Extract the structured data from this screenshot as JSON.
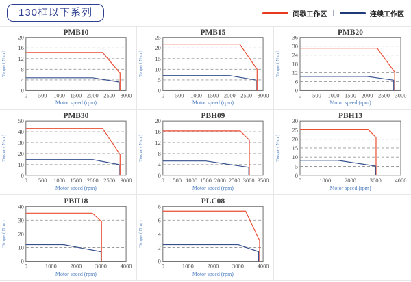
{
  "header": {
    "title": "130框以下系列",
    "legend": {
      "separator": "|",
      "items": [
        {
          "label": "间歇工作区",
          "color": "#e8391d"
        },
        {
          "label": "连续工作区",
          "color": "#1e3a78"
        }
      ]
    }
  },
  "chart_style": {
    "grid_color": "#9a9a9a",
    "frame_color": "#6e6e6e",
    "tick_color": "#4f4f4f",
    "title_color": "#3c3c3c",
    "axis_label_color": "#4f7fc0"
  },
  "chart_data": [
    {
      "type": "line",
      "title": "PMB10",
      "xlabel": "Motor speed (rpm)",
      "ylabel": "Torque ( N·m )",
      "xlim": [
        0,
        3000
      ],
      "ylim": [
        0,
        20
      ],
      "xticks": [
        0,
        500,
        1000,
        1500,
        2000,
        2500,
        3000
      ],
      "yticks": [
        0,
        4,
        8,
        12,
        16,
        20
      ],
      "grid": true,
      "legend_position": "none",
      "series": [
        {
          "name": "间歇工作区",
          "color": "#ea4f35",
          "points": [
            [
              0,
              14.3
            ],
            [
              2300,
              14.3
            ],
            [
              2820,
              6.5
            ],
            [
              2820,
              0
            ]
          ]
        },
        {
          "name": "连续工作区",
          "color": "#35508d",
          "points": [
            [
              0,
              4.8
            ],
            [
              2000,
              4.8
            ],
            [
              2790,
              3.2
            ],
            [
              2790,
              0
            ]
          ]
        }
      ]
    },
    {
      "type": "line",
      "title": "PMB15",
      "xlabel": "Motor speed (rpm)",
      "ylabel": "Torque ( N·m )",
      "xlim": [
        0,
        3000
      ],
      "ylim": [
        0,
        25
      ],
      "xticks": [
        0,
        500,
        1000,
        1500,
        2000,
        2500,
        3000
      ],
      "yticks": [
        0,
        5,
        10,
        15,
        20,
        25
      ],
      "grid": true,
      "legend_position": "none",
      "series": [
        {
          "name": "间歇工作区",
          "color": "#ea4f35",
          "points": [
            [
              0,
              21.8
            ],
            [
              2300,
              21.8
            ],
            [
              2820,
              10
            ],
            [
              2820,
              0
            ]
          ]
        },
        {
          "name": "连续工作区",
          "color": "#35508d",
          "points": [
            [
              0,
              7
            ],
            [
              2000,
              7
            ],
            [
              2790,
              4.9
            ],
            [
              2790,
              0
            ]
          ]
        }
      ]
    },
    {
      "type": "line",
      "title": "PMB20",
      "xlabel": "Motor speed (rpm)",
      "ylabel": "Torque ( N·m )",
      "xlim": [
        0,
        3000
      ],
      "ylim": [
        0,
        36
      ],
      "xticks": [
        0,
        500,
        1000,
        1500,
        2000,
        2500,
        3000
      ],
      "yticks": [
        0,
        6,
        12,
        18,
        24,
        30,
        36
      ],
      "grid": true,
      "legend_position": "none",
      "series": [
        {
          "name": "间歇工作区",
          "color": "#ea4f35",
          "points": [
            [
              0,
              28.6
            ],
            [
              2300,
              28.6
            ],
            [
              2820,
              12.5
            ],
            [
              2820,
              0
            ]
          ]
        },
        {
          "name": "连续工作区",
          "color": "#35508d",
          "points": [
            [
              0,
              9.5
            ],
            [
              2000,
              9.5
            ],
            [
              2790,
              7
            ],
            [
              2790,
              0
            ]
          ]
        }
      ]
    },
    {
      "type": "line",
      "title": "PMB30",
      "xlabel": "Motor speed (rpm)",
      "ylabel": "Torque ( N·m )",
      "xlim": [
        0,
        3000
      ],
      "ylim": [
        0,
        50
      ],
      "xticks": [
        0,
        500,
        1000,
        1500,
        2000,
        2500,
        3000
      ],
      "yticks": [
        0,
        10,
        20,
        30,
        40,
        50
      ],
      "grid": true,
      "legend_position": "none",
      "series": [
        {
          "name": "间歇工作区",
          "color": "#ea4f35",
          "points": [
            [
              0,
              43
            ],
            [
              2300,
              43
            ],
            [
              2820,
              19
            ],
            [
              2820,
              0
            ]
          ]
        },
        {
          "name": "连续工作区",
          "color": "#35508d",
          "points": [
            [
              0,
              14.5
            ],
            [
              2000,
              14.5
            ],
            [
              2790,
              10
            ],
            [
              2790,
              0
            ]
          ]
        }
      ]
    },
    {
      "type": "line",
      "title": "PBH09",
      "xlabel": "Motor speed (rpm)",
      "ylabel": "Torque ( N·m )",
      "xlim": [
        0,
        3500
      ],
      "ylim": [
        0,
        20
      ],
      "xticks": [
        0,
        500,
        1000,
        1500,
        2000,
        2500,
        3000,
        3500
      ],
      "yticks": [
        0,
        4,
        8,
        12,
        16,
        20
      ],
      "grid": true,
      "legend_position": "none",
      "series": [
        {
          "name": "间歇工作区",
          "color": "#ea4f35",
          "points": [
            [
              0,
              16.3
            ],
            [
              2700,
              16.3
            ],
            [
              3020,
              13
            ],
            [
              3020,
              0
            ]
          ]
        },
        {
          "name": "连续工作区",
          "color": "#35508d",
          "points": [
            [
              0,
              5.3
            ],
            [
              1500,
              5.3
            ],
            [
              3000,
              3
            ],
            [
              3000,
              0
            ]
          ]
        }
      ]
    },
    {
      "type": "line",
      "title": "PBH13",
      "xlabel": "Motor speed (rpm)",
      "ylabel": "Torque ( N·m )",
      "xlim": [
        0,
        4000
      ],
      "ylim": [
        0,
        30
      ],
      "xticks": [
        0,
        1000,
        2000,
        3000,
        4000
      ],
      "yticks": [
        0,
        5,
        10,
        15,
        20,
        25,
        30
      ],
      "grid": true,
      "legend_position": "none",
      "series": [
        {
          "name": "间歇工作区",
          "color": "#ea4f35",
          "points": [
            [
              0,
              25.3
            ],
            [
              2700,
              25.3
            ],
            [
              3020,
              21
            ],
            [
              3020,
              0
            ]
          ]
        },
        {
          "name": "连续工作区",
          "color": "#35508d",
          "points": [
            [
              0,
              8.3
            ],
            [
              1500,
              8.3
            ],
            [
              3000,
              5.2
            ],
            [
              3000,
              0
            ]
          ]
        }
      ]
    },
    {
      "type": "line",
      "title": "PBH18",
      "xlabel": "Motor speed (rpm)",
      "ylabel": "Torque ( N·m )",
      "xlim": [
        0,
        4000
      ],
      "ylim": [
        0,
        40
      ],
      "xticks": [
        0,
        1000,
        2000,
        3000,
        4000
      ],
      "yticks": [
        0,
        10,
        20,
        30,
        40
      ],
      "grid": true,
      "legend_position": "none",
      "series": [
        {
          "name": "间歇工作区",
          "color": "#ea4f35",
          "points": [
            [
              0,
              35
            ],
            [
              2650,
              35
            ],
            [
              3020,
              29
            ],
            [
              3020,
              0
            ]
          ]
        },
        {
          "name": "连续工作区",
          "color": "#35508d",
          "points": [
            [
              0,
              12
            ],
            [
              1500,
              12
            ],
            [
              3000,
              7
            ],
            [
              3000,
              0
            ]
          ]
        }
      ]
    },
    {
      "type": "line",
      "title": "PLC08",
      "xlabel": "Motor speed (rpm)",
      "ylabel": "Torque ( N·m )",
      "xlim": [
        0,
        4000
      ],
      "ylim": [
        0,
        8
      ],
      "xticks": [
        0,
        1000,
        2000,
        3000,
        4000
      ],
      "yticks": [
        0,
        2,
        4,
        6,
        8
      ],
      "grid": true,
      "legend_position": "none",
      "series": [
        {
          "name": "间歇工作区",
          "color": "#ea4f35",
          "points": [
            [
              0,
              7.3
            ],
            [
              3300,
              7.3
            ],
            [
              3860,
              3
            ],
            [
              3860,
              0
            ]
          ]
        },
        {
          "name": "连续工作区",
          "color": "#35508d",
          "points": [
            [
              0,
              2.4
            ],
            [
              3000,
              2.4
            ],
            [
              3820,
              1.4
            ],
            [
              3820,
              0
            ]
          ]
        }
      ]
    }
  ]
}
